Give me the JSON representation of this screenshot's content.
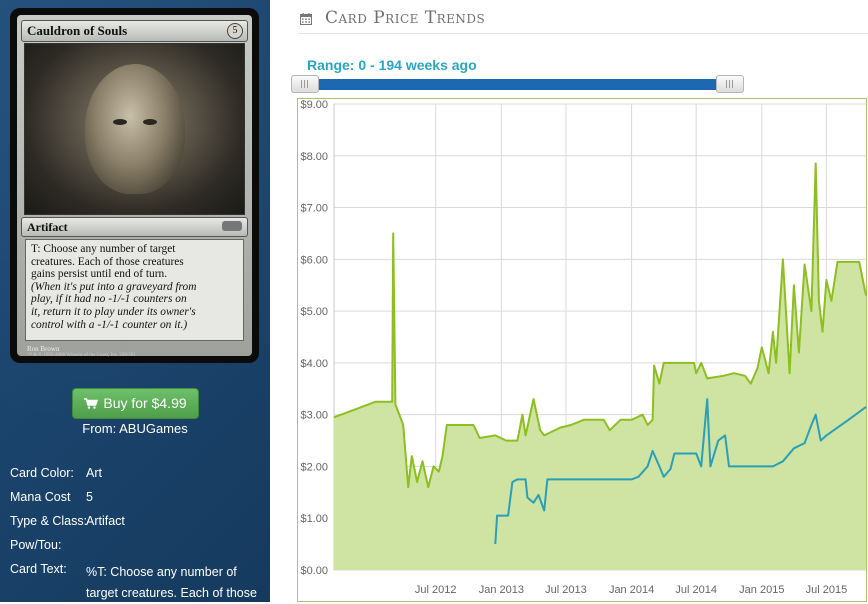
{
  "card": {
    "name": "Cauldron of Souls",
    "mana_symbol": "5",
    "type_line": "Artifact",
    "text_lines": [
      "T: Choose any number of target",
      "creatures. Each of those creatures",
      "gains persist until end of turn."
    ],
    "reminder_lines": [
      "(When it's put into a graveyard from",
      "play, if it had no -1/-1 counters on",
      "it, return it to play under its owner's",
      "control with a -1/-1 counter on it.)"
    ],
    "artist": "Ron Brown",
    "copyright": "™ & © 1993-2008 Wizards of the Coast, Inc. 248/301"
  },
  "buy": {
    "label": "Buy for $4.99",
    "from": "From: ABUGames",
    "color": "#5cb85c"
  },
  "details": [
    {
      "label": "Card Color:",
      "value": "Art"
    },
    {
      "label": "Mana Cost",
      "value": "5"
    },
    {
      "label": "Type & Class:",
      "value": "Artifact"
    },
    {
      "label": "Pow/Tou:",
      "value": ""
    },
    {
      "label": "Card Text:",
      "value": "%T: Choose any number of target creatures. Each of those"
    }
  ],
  "page": {
    "title": "Card Price Trends",
    "range_label": "Range: 0 - 194 weeks ago"
  },
  "chart_data": {
    "type": "area",
    "x_type": "date",
    "ylim": [
      0,
      9
    ],
    "xlim": [
      "2011-09-20",
      "2015-10-20"
    ],
    "y_ticks": [
      "$0.00",
      "$1.00",
      "$2.00",
      "$3.00",
      "$4.00",
      "$5.00",
      "$6.00",
      "$7.00",
      "$8.00",
      "$9.00"
    ],
    "x_ticks": [
      {
        "date": "2012-07-01",
        "label": "Jul 2012"
      },
      {
        "date": "2013-01-01",
        "label": "Jan 2013"
      },
      {
        "date": "2013-07-01",
        "label": "Jul 2013"
      },
      {
        "date": "2014-01-01",
        "label": "Jan 2014"
      },
      {
        "date": "2014-07-01",
        "label": "Jul 2014"
      },
      {
        "date": "2015-01-01",
        "label": "Jan 2015"
      },
      {
        "date": "2015-07-01",
        "label": "Jul 2015"
      }
    ],
    "grid": true,
    "series": [
      {
        "color": "#8cbf1f",
        "fill": "#cfe3a2",
        "points": [
          [
            "2011-09-20",
            2.95
          ],
          [
            "2012-01-15",
            3.25
          ],
          [
            "2012-03-01",
            3.25
          ],
          [
            "2012-03-04",
            6.5
          ],
          [
            "2012-03-10",
            3.2
          ],
          [
            "2012-04-01",
            2.8
          ],
          [
            "2012-04-15",
            1.6
          ],
          [
            "2012-04-25",
            2.2
          ],
          [
            "2012-05-10",
            1.7
          ],
          [
            "2012-05-25",
            2.1
          ],
          [
            "2012-06-10",
            1.6
          ],
          [
            "2012-06-25",
            2.0
          ],
          [
            "2012-07-10",
            1.9
          ],
          [
            "2012-07-20",
            2.2
          ],
          [
            "2012-08-01",
            2.8
          ],
          [
            "2012-09-01",
            2.8
          ],
          [
            "2012-10-15",
            2.8
          ],
          [
            "2012-11-01",
            2.55
          ],
          [
            "2012-12-15",
            2.6
          ],
          [
            "2013-01-15",
            2.5
          ],
          [
            "2013-02-15",
            2.5
          ],
          [
            "2013-03-01",
            3.0
          ],
          [
            "2013-03-10",
            2.6
          ],
          [
            "2013-04-01",
            3.3
          ],
          [
            "2013-04-20",
            2.7
          ],
          [
            "2013-05-01",
            2.6
          ],
          [
            "2013-06-15",
            2.75
          ],
          [
            "2013-07-15",
            2.8
          ],
          [
            "2013-08-20",
            2.9
          ],
          [
            "2013-10-15",
            2.9
          ],
          [
            "2013-11-01",
            2.7
          ],
          [
            "2013-12-01",
            2.9
          ],
          [
            "2014-01-01",
            2.9
          ],
          [
            "2014-02-01",
            3.0
          ],
          [
            "2014-02-15",
            2.8
          ],
          [
            "2014-03-01",
            2.9
          ],
          [
            "2014-03-05",
            3.95
          ],
          [
            "2014-03-20",
            3.6
          ],
          [
            "2014-04-01",
            4.0
          ],
          [
            "2014-05-01",
            4.0
          ],
          [
            "2014-06-01",
            4.0
          ],
          [
            "2014-06-25",
            4.0
          ],
          [
            "2014-07-01",
            3.8
          ],
          [
            "2014-07-15",
            4.0
          ],
          [
            "2014-08-01",
            3.7
          ],
          [
            "2014-09-15",
            3.75
          ],
          [
            "2014-10-15",
            3.8
          ],
          [
            "2014-11-15",
            3.75
          ],
          [
            "2014-12-01",
            3.6
          ],
          [
            "2014-12-20",
            3.9
          ],
          [
            "2015-01-01",
            4.3
          ],
          [
            "2015-01-20",
            3.8
          ],
          [
            "2015-02-01",
            4.6
          ],
          [
            "2015-02-10",
            4.0
          ],
          [
            "2015-03-01",
            6.0
          ],
          [
            "2015-03-20",
            3.8
          ],
          [
            "2015-04-01",
            5.5
          ],
          [
            "2015-04-15",
            4.2
          ],
          [
            "2015-05-01",
            5.9
          ],
          [
            "2015-05-20",
            5.0
          ],
          [
            "2015-06-01",
            7.85
          ],
          [
            "2015-06-10",
            5.2
          ],
          [
            "2015-06-20",
            4.6
          ],
          [
            "2015-07-01",
            5.6
          ],
          [
            "2015-07-15",
            5.2
          ],
          [
            "2015-08-01",
            5.95
          ],
          [
            "2015-09-01",
            5.95
          ],
          [
            "2015-10-01",
            5.95
          ],
          [
            "2015-10-20",
            5.3
          ]
        ]
      },
      {
        "color": "#2aa0b8",
        "points": [
          [
            "2012-12-15",
            0.5
          ],
          [
            "2012-12-20",
            1.05
          ],
          [
            "2013-01-20",
            1.05
          ],
          [
            "2013-02-01",
            1.7
          ],
          [
            "2013-02-15",
            1.75
          ],
          [
            "2013-03-10",
            1.75
          ],
          [
            "2013-03-15",
            1.4
          ],
          [
            "2013-04-01",
            1.3
          ],
          [
            "2013-04-15",
            1.45
          ],
          [
            "2013-05-01",
            1.15
          ],
          [
            "2013-05-10",
            1.75
          ],
          [
            "2013-07-01",
            1.75
          ],
          [
            "2013-10-01",
            1.75
          ],
          [
            "2014-01-01",
            1.75
          ],
          [
            "2014-01-20",
            1.8
          ],
          [
            "2014-02-15",
            2.0
          ],
          [
            "2014-03-01",
            2.3
          ],
          [
            "2014-03-20",
            2.0
          ],
          [
            "2014-04-01",
            1.8
          ],
          [
            "2014-04-20",
            1.95
          ],
          [
            "2014-05-01",
            2.25
          ],
          [
            "2014-06-01",
            2.25
          ],
          [
            "2014-07-01",
            2.25
          ],
          [
            "2014-07-15",
            2.0
          ],
          [
            "2014-08-01",
            3.3
          ],
          [
            "2014-08-10",
            2.0
          ],
          [
            "2014-09-01",
            2.5
          ],
          [
            "2014-09-20",
            2.6
          ],
          [
            "2014-10-01",
            2.0
          ],
          [
            "2014-12-01",
            2.0
          ],
          [
            "2015-02-01",
            2.0
          ],
          [
            "2015-03-01",
            2.1
          ],
          [
            "2015-04-01",
            2.35
          ],
          [
            "2015-05-01",
            2.45
          ],
          [
            "2015-05-20",
            2.8
          ],
          [
            "2015-06-01",
            3.0
          ],
          [
            "2015-06-15",
            2.5
          ],
          [
            "2015-07-01",
            2.6
          ],
          [
            "2015-08-01",
            2.75
          ],
          [
            "2015-09-01",
            2.9
          ],
          [
            "2015-10-20",
            3.15
          ]
        ]
      }
    ]
  }
}
